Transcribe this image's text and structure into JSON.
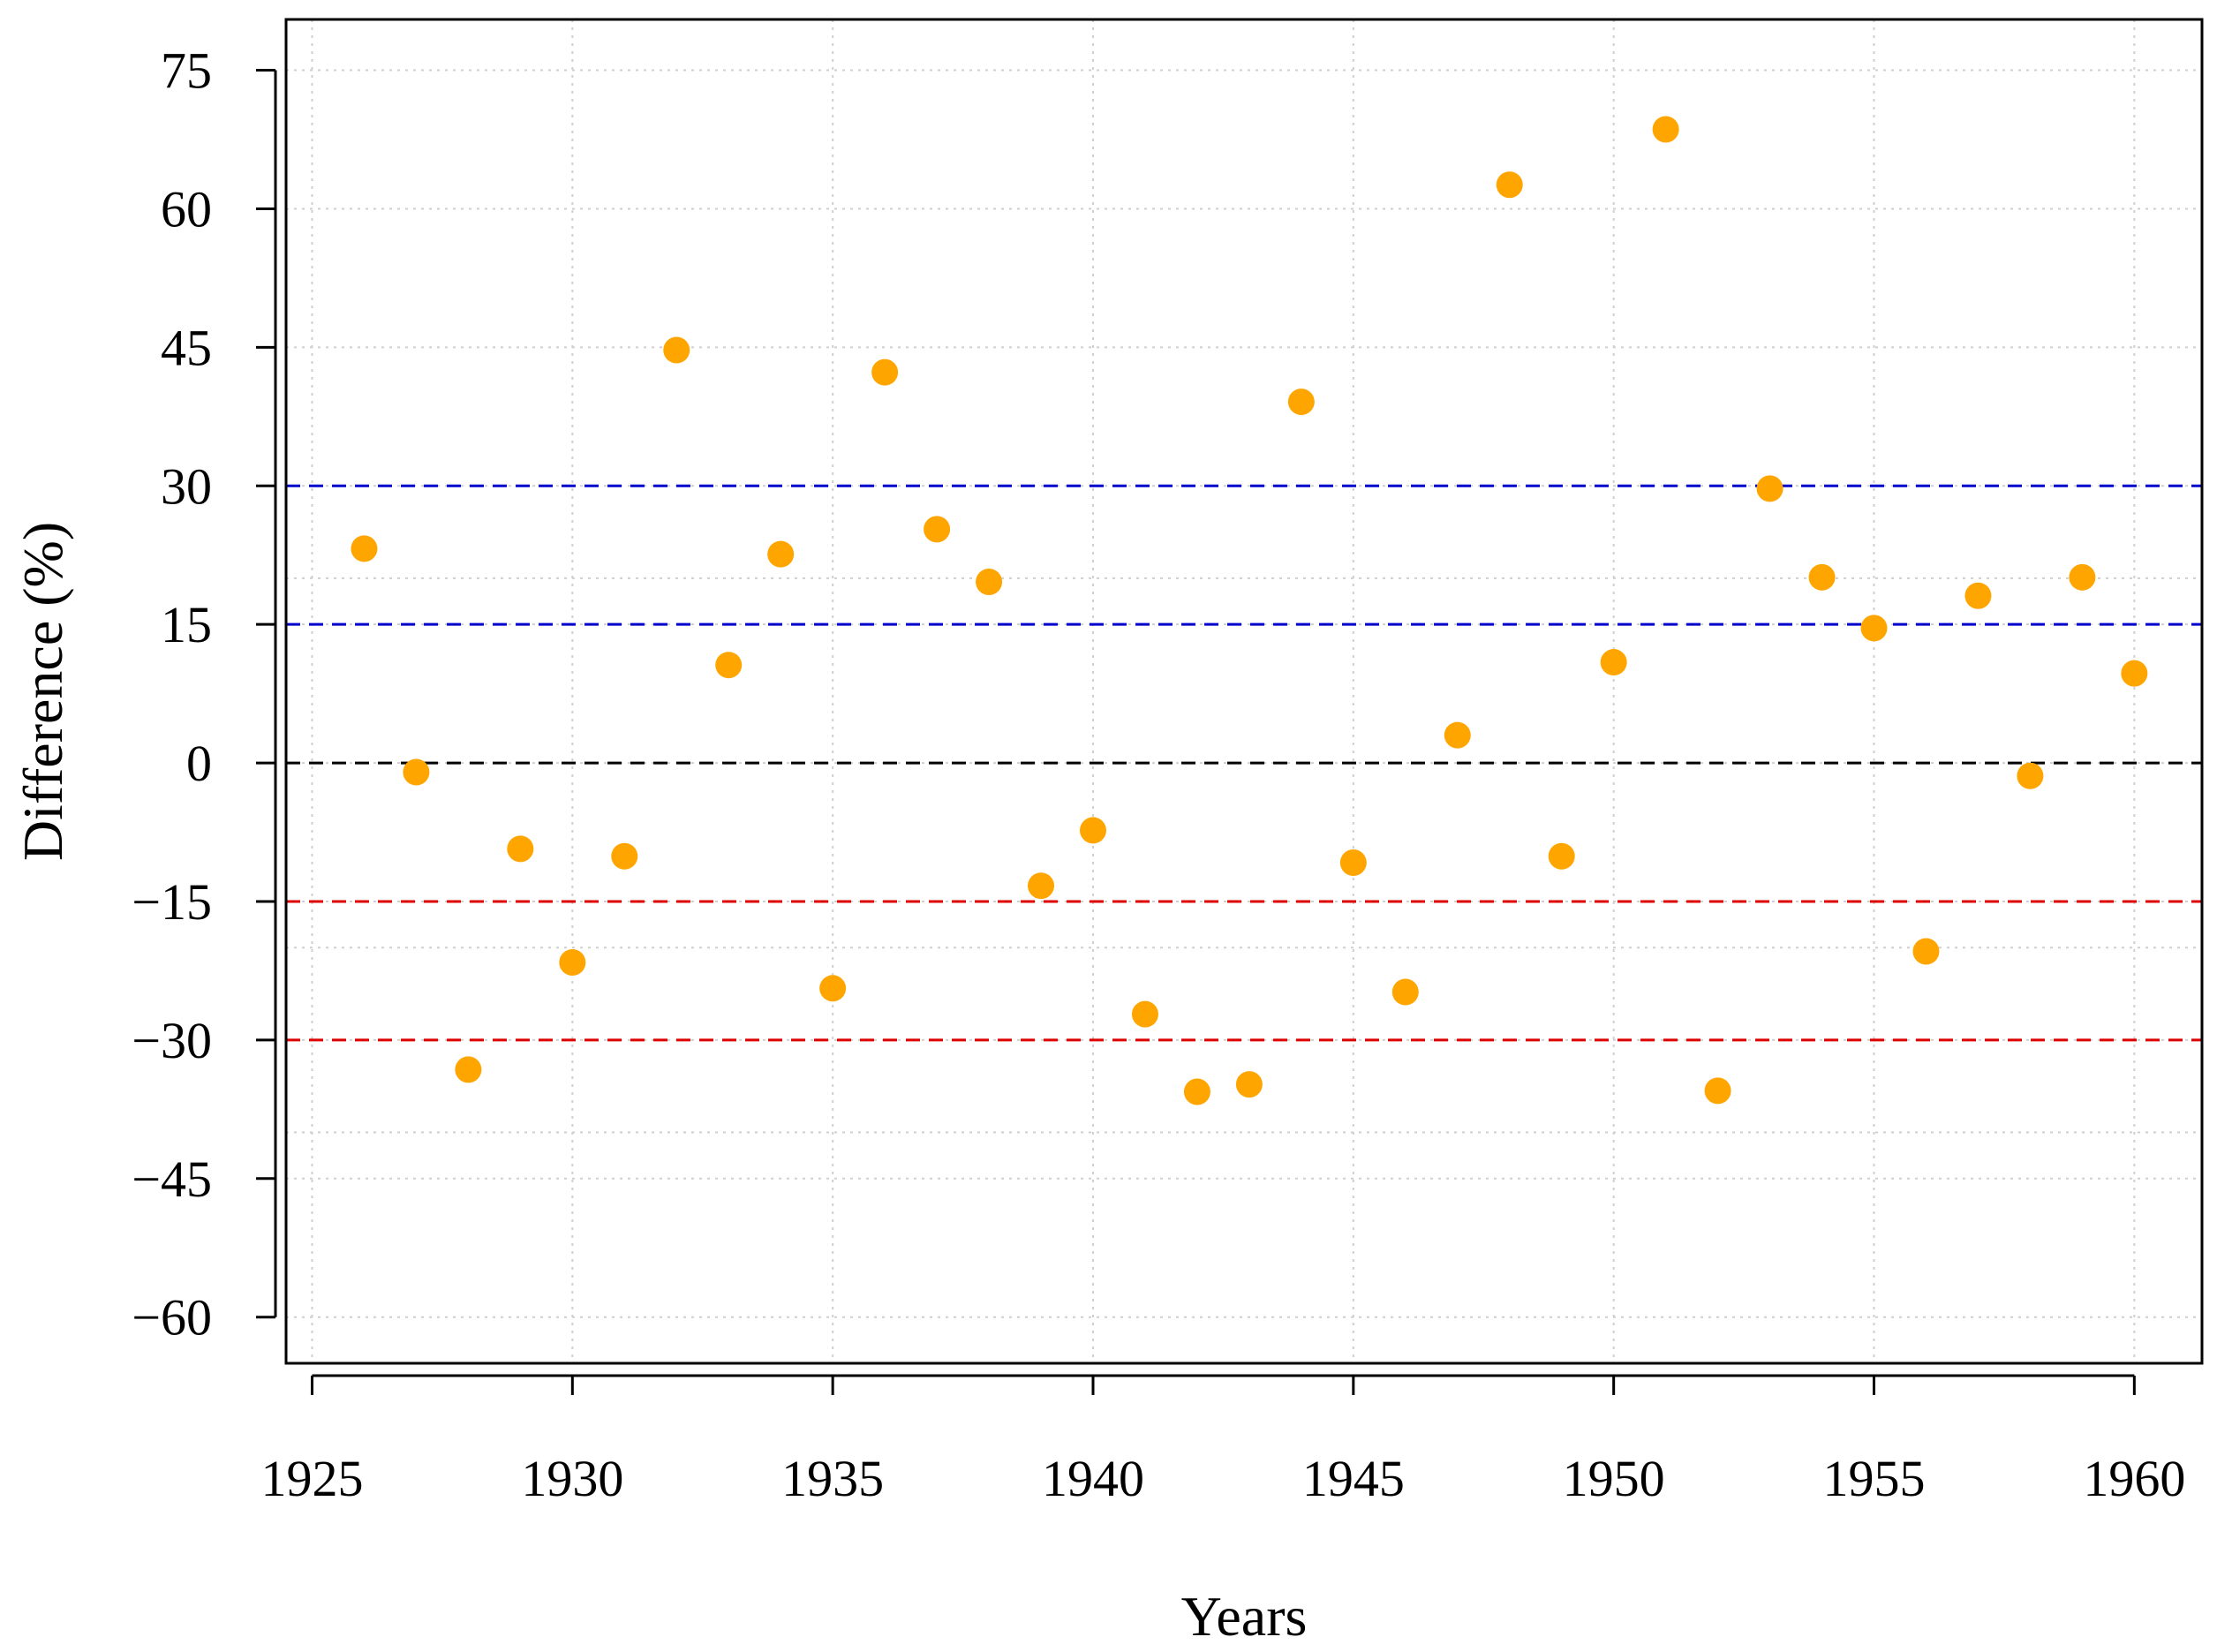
{
  "chart_data": {
    "type": "scatter",
    "title": "",
    "xlabel": "Years",
    "ylabel": "Difference (%)",
    "xlim": [
      1924.5,
      1961.3
    ],
    "ylim": [
      -65,
      80.5
    ],
    "x_ticks": [
      1925,
      1930,
      1935,
      1940,
      1945,
      1950,
      1955,
      1960
    ],
    "x_tick_labels": [
      "1925",
      "1930",
      "1935",
      "1940",
      "1945",
      "1950",
      "1955",
      "1960"
    ],
    "y_ticks": [
      75,
      60,
      45,
      30,
      15,
      0,
      -15,
      -30,
      -45,
      -60
    ],
    "y_tick_labels": [
      "75",
      "60",
      "45",
      "30",
      "15",
      "0",
      "−15",
      "−30",
      "−45",
      "−60"
    ],
    "y_minor_gridlines": [
      20,
      -20,
      -40
    ],
    "grid": true,
    "legend": "none",
    "reference_lines": [
      {
        "y": 30,
        "color": "#0000cc",
        "style": "dashed"
      },
      {
        "y": 15,
        "color": "#0000cc",
        "style": "dashed"
      },
      {
        "y": 0,
        "color": "#000000",
        "style": "dashed"
      },
      {
        "y": -15,
        "color": "#dd0000",
        "style": "dashed"
      },
      {
        "y": -30,
        "color": "#dd0000",
        "style": "dashed"
      }
    ],
    "series": [
      {
        "color": "#ffa500",
        "x": [
          1926,
          1927,
          1928,
          1929,
          1930,
          1931,
          1932,
          1933,
          1934,
          1935,
          1936,
          1937,
          1938,
          1939,
          1940,
          1941,
          1942,
          1943,
          1944,
          1945,
          1946,
          1947,
          1948,
          1949,
          1950,
          1951,
          1952,
          1953,
          1954,
          1955,
          1956,
          1957,
          1958,
          1959,
          1960
        ],
        "y": [
          23.2,
          -1.0,
          -33.2,
          -9.3,
          -21.6,
          -10.1,
          44.7,
          10.6,
          22.6,
          -24.4,
          42.3,
          25.3,
          19.6,
          -13.3,
          -7.3,
          -27.2,
          -35.6,
          -34.8,
          39.1,
          -10.8,
          -24.8,
          3.0,
          62.6,
          -10.1,
          10.9,
          68.6,
          -35.5,
          29.7,
          20.1,
          14.6,
          -20.4,
          18.1,
          -1.4,
          20.1,
          9.7
        ]
      }
    ]
  }
}
